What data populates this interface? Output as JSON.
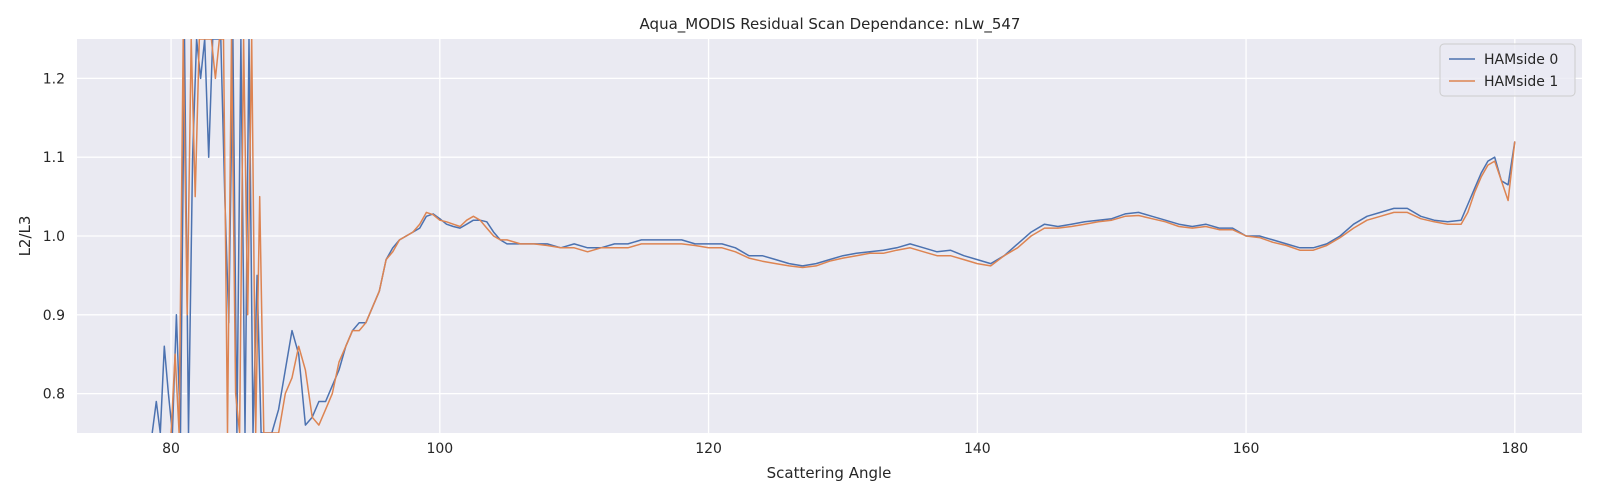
{
  "chart_data": {
    "type": "line",
    "title": "Aqua_MODIS Residual Scan Dependance: nLw_547",
    "xlabel": "Scattering Angle",
    "ylabel": "L2/L3",
    "xlim": [
      73,
      185
    ],
    "ylim": [
      0.75,
      1.25
    ],
    "xticks": [
      80,
      100,
      120,
      140,
      160,
      180
    ],
    "yticks": [
      0.8,
      0.9,
      1.0,
      1.1,
      1.2
    ],
    "xtick_labels": [
      "80",
      "100",
      "120",
      "140",
      "160",
      "180"
    ],
    "ytick_labels": [
      "0.8",
      "0.9",
      "1.0",
      "1.1",
      "1.2"
    ],
    "grid": true,
    "legend_position": "top-right",
    "series": [
      {
        "name": "HAMside 0",
        "color": "#4c72b0",
        "x": [
          78.6,
          78.9,
          79.2,
          79.5,
          79.8,
          80.1,
          80.4,
          80.7,
          81.0,
          81.3,
          81.6,
          81.9,
          82.2,
          82.5,
          82.8,
          83.1,
          83.4,
          83.7,
          84.0,
          84.3,
          84.6,
          84.9,
          85.2,
          85.5,
          85.8,
          86.1,
          86.4,
          86.7,
          87.0,
          87.5,
          88.0,
          88.5,
          89.0,
          89.5,
          90.0,
          90.5,
          91.0,
          91.5,
          92.0,
          92.5,
          93.0,
          93.5,
          94.0,
          94.5,
          95.0,
          95.5,
          96.0,
          96.5,
          97.0,
          97.5,
          98.0,
          98.5,
          99.0,
          99.5,
          100.0,
          100.5,
          101.0,
          101.5,
          102.0,
          102.5,
          103.0,
          103.5,
          104.0,
          104.5,
          105.0,
          106.0,
          107.0,
          108.0,
          109.0,
          110.0,
          111.0,
          112.0,
          113.0,
          114.0,
          115.0,
          116.0,
          117.0,
          118.0,
          119.0,
          120.0,
          121.0,
          122.0,
          123.0,
          124.0,
          125.0,
          126.0,
          127.0,
          128.0,
          129.0,
          130.0,
          131.0,
          132.0,
          133.0,
          134.0,
          135.0,
          136.0,
          137.0,
          138.0,
          139.0,
          140.0,
          141.0,
          142.0,
          143.0,
          144.0,
          145.0,
          146.0,
          147.0,
          148.0,
          149.0,
          150.0,
          151.0,
          152.0,
          153.0,
          154.0,
          155.0,
          156.0,
          157.0,
          158.0,
          159.0,
          160.0,
          161.0,
          162.0,
          163.0,
          164.0,
          165.0,
          166.0,
          167.0,
          168.0,
          169.0,
          170.0,
          171.0,
          172.0,
          173.0,
          174.0,
          175.0,
          176.0,
          176.5,
          177.0,
          177.5,
          178.0,
          178.5,
          179.0,
          179.5,
          180.0
        ],
        "y": [
          0.75,
          0.79,
          0.75,
          0.86,
          0.8,
          0.75,
          0.9,
          0.75,
          1.25,
          0.75,
          1.1,
          1.25,
          1.2,
          1.25,
          1.1,
          1.25,
          1.25,
          1.25,
          1.05,
          0.89,
          1.25,
          0.75,
          1.25,
          0.75,
          1.25,
          0.75,
          0.95,
          0.75,
          0.75,
          0.75,
          0.78,
          0.83,
          0.88,
          0.85,
          0.76,
          0.77,
          0.79,
          0.79,
          0.81,
          0.83,
          0.86,
          0.88,
          0.89,
          0.89,
          0.91,
          0.93,
          0.97,
          0.985,
          0.995,
          1.0,
          1.005,
          1.01,
          1.025,
          1.028,
          1.022,
          1.015,
          1.012,
          1.01,
          1.015,
          1.02,
          1.02,
          1.018,
          1.005,
          0.995,
          0.99,
          0.99,
          0.99,
          0.99,
          0.985,
          0.99,
          0.985,
          0.985,
          0.99,
          0.99,
          0.995,
          0.995,
          0.995,
          0.995,
          0.99,
          0.99,
          0.99,
          0.985,
          0.975,
          0.975,
          0.97,
          0.965,
          0.962,
          0.965,
          0.97,
          0.975,
          0.978,
          0.98,
          0.982,
          0.985,
          0.99,
          0.985,
          0.98,
          0.982,
          0.975,
          0.97,
          0.965,
          0.975,
          0.99,
          1.005,
          1.015,
          1.012,
          1.015,
          1.018,
          1.02,
          1.022,
          1.028,
          1.03,
          1.025,
          1.02,
          1.015,
          1.012,
          1.015,
          1.01,
          1.01,
          1.0,
          1.0,
          0.995,
          0.99,
          0.985,
          0.985,
          0.99,
          1.0,
          1.015,
          1.025,
          1.03,
          1.035,
          1.035,
          1.025,
          1.02,
          1.018,
          1.02,
          1.04,
          1.06,
          1.08,
          1.095,
          1.1,
          1.07,
          1.065,
          1.12
        ]
      },
      {
        "name": "HAMside 1",
        "color": "#dd8452",
        "x": [
          80.0,
          80.3,
          80.6,
          80.9,
          81.2,
          81.5,
          81.8,
          82.1,
          82.4,
          82.7,
          83.0,
          83.3,
          83.6,
          83.9,
          84.2,
          84.5,
          84.8,
          85.1,
          85.4,
          85.7,
          86.0,
          86.3,
          86.6,
          86.9,
          87.2,
          87.6,
          88.0,
          88.5,
          89.0,
          89.5,
          90.0,
          90.5,
          91.0,
          91.5,
          92.0,
          92.5,
          93.0,
          93.5,
          94.0,
          94.5,
          95.0,
          95.5,
          96.0,
          96.5,
          97.0,
          97.5,
          98.0,
          98.5,
          99.0,
          99.5,
          100.0,
          100.5,
          101.0,
          101.5,
          102.0,
          102.5,
          103.0,
          103.5,
          104.0,
          104.5,
          105.0,
          106.0,
          107.0,
          108.0,
          109.0,
          110.0,
          111.0,
          112.0,
          113.0,
          114.0,
          115.0,
          116.0,
          117.0,
          118.0,
          119.0,
          120.0,
          121.0,
          122.0,
          123.0,
          124.0,
          125.0,
          126.0,
          127.0,
          128.0,
          129.0,
          130.0,
          131.0,
          132.0,
          133.0,
          134.0,
          135.0,
          136.0,
          137.0,
          138.0,
          139.0,
          140.0,
          141.0,
          142.0,
          143.0,
          144.0,
          145.0,
          146.0,
          147.0,
          148.0,
          149.0,
          150.0,
          151.0,
          152.0,
          153.0,
          154.0,
          155.0,
          156.0,
          157.0,
          158.0,
          159.0,
          160.0,
          161.0,
          162.0,
          163.0,
          164.0,
          165.0,
          166.0,
          167.0,
          168.0,
          169.0,
          170.0,
          171.0,
          172.0,
          173.0,
          174.0,
          175.0,
          176.0,
          176.5,
          177.0,
          177.5,
          178.0,
          178.5,
          179.0,
          179.5,
          180.0
        ],
        "y": [
          0.75,
          0.85,
          0.75,
          1.25,
          0.9,
          1.25,
          1.05,
          1.25,
          1.25,
          1.25,
          1.25,
          1.2,
          1.25,
          1.25,
          0.75,
          1.25,
          0.8,
          0.75,
          1.25,
          0.9,
          1.25,
          0.75,
          1.05,
          0.75,
          0.75,
          0.75,
          0.75,
          0.8,
          0.82,
          0.86,
          0.83,
          0.77,
          0.76,
          0.78,
          0.8,
          0.84,
          0.86,
          0.88,
          0.88,
          0.89,
          0.91,
          0.93,
          0.97,
          0.98,
          0.995,
          1.0,
          1.005,
          1.015,
          1.03,
          1.027,
          1.02,
          1.018,
          1.015,
          1.012,
          1.02,
          1.025,
          1.02,
          1.01,
          1.0,
          0.995,
          0.995,
          0.99,
          0.99,
          0.988,
          0.985,
          0.985,
          0.98,
          0.985,
          0.985,
          0.985,
          0.99,
          0.99,
          0.99,
          0.99,
          0.988,
          0.985,
          0.985,
          0.98,
          0.972,
          0.968,
          0.965,
          0.962,
          0.96,
          0.962,
          0.968,
          0.972,
          0.975,
          0.978,
          0.978,
          0.982,
          0.985,
          0.98,
          0.975,
          0.975,
          0.97,
          0.965,
          0.962,
          0.975,
          0.985,
          1.0,
          1.01,
          1.01,
          1.012,
          1.015,
          1.018,
          1.02,
          1.025,
          1.026,
          1.022,
          1.018,
          1.012,
          1.01,
          1.012,
          1.008,
          1.008,
          1.0,
          0.998,
          0.992,
          0.988,
          0.982,
          0.982,
          0.988,
          0.998,
          1.01,
          1.02,
          1.025,
          1.03,
          1.03,
          1.022,
          1.018,
          1.015,
          1.015,
          1.03,
          1.055,
          1.075,
          1.09,
          1.095,
          1.07,
          1.045,
          1.12
        ]
      }
    ]
  }
}
